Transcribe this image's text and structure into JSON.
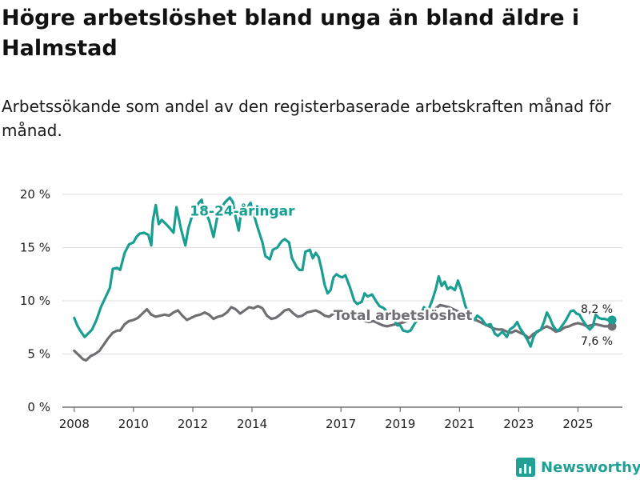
{
  "title": "Högre arbetslöshet bland unga än bland äldre i Halmstad",
  "subtitle": "Arbetssökande som andel av den registerbaserade arbetskraften månad för månad.",
  "brand": {
    "name": "Newsworthy",
    "color": "#21a195",
    "icon": "bar-chart-icon"
  },
  "chart_data": {
    "type": "line",
    "title": "Högre arbetslöshet bland unga än bland äldre i Halmstad",
    "xlabel": "",
    "ylabel": "",
    "xlim": [
      2007.6,
      2026.5
    ],
    "ylim": [
      0,
      20
    ],
    "yticks": [
      0,
      5,
      10,
      15,
      20
    ],
    "ytick_labels": [
      "0 %",
      "5 %",
      "10 %",
      "15 %",
      "20 %"
    ],
    "xticks": [
      2008,
      2010,
      2012,
      2014,
      2017,
      2019,
      2021,
      2023,
      2025
    ],
    "xtick_labels": [
      "2008",
      "2010",
      "2012",
      "2014",
      "2017",
      "2019",
      "2021",
      "2023",
      "2025"
    ],
    "grid": true,
    "series": [
      {
        "name": "18-24-åringar",
        "label": "18-24-åringar",
        "color": "#1a9e91",
        "end_label": "8,2 %",
        "end_value": 8.2,
        "points": [
          [
            2008.0,
            8.4
          ],
          [
            2008.1,
            7.7
          ],
          [
            2008.2,
            7.2
          ],
          [
            2008.35,
            6.6
          ],
          [
            2008.5,
            7.0
          ],
          [
            2008.6,
            7.3
          ],
          [
            2008.75,
            8.2
          ],
          [
            2008.9,
            9.4
          ],
          [
            2009.05,
            10.3
          ],
          [
            2009.2,
            11.2
          ],
          [
            2009.3,
            13.0
          ],
          [
            2009.45,
            13.1
          ],
          [
            2009.55,
            12.9
          ],
          [
            2009.7,
            14.5
          ],
          [
            2009.85,
            15.3
          ],
          [
            2010.0,
            15.5
          ],
          [
            2010.1,
            16.0
          ],
          [
            2010.2,
            16.3
          ],
          [
            2010.35,
            16.4
          ],
          [
            2010.5,
            16.2
          ],
          [
            2010.6,
            15.2
          ],
          [
            2010.65,
            17.5
          ],
          [
            2010.75,
            19.0
          ],
          [
            2010.85,
            17.2
          ],
          [
            2010.95,
            17.6
          ],
          [
            2011.1,
            17.2
          ],
          [
            2011.2,
            16.9
          ],
          [
            2011.35,
            16.4
          ],
          [
            2011.45,
            18.8
          ],
          [
            2011.6,
            16.8
          ],
          [
            2011.75,
            15.2
          ],
          [
            2011.85,
            16.8
          ],
          [
            2012.0,
            18.2
          ],
          [
            2012.1,
            18.7
          ],
          [
            2012.2,
            19.2
          ],
          [
            2012.3,
            19.5
          ],
          [
            2012.35,
            18.8
          ],
          [
            2012.55,
            17.6
          ],
          [
            2012.7,
            16.0
          ],
          [
            2012.85,
            18.2
          ],
          [
            2013.0,
            18.9
          ],
          [
            2013.1,
            19.3
          ],
          [
            2013.25,
            19.7
          ],
          [
            2013.35,
            19.3
          ],
          [
            2013.45,
            17.8
          ],
          [
            2013.55,
            16.6
          ],
          [
            2013.65,
            18.8
          ],
          [
            2013.8,
            18.6
          ],
          [
            2013.95,
            19.2
          ],
          [
            2014.05,
            18.2
          ],
          [
            2014.2,
            16.8
          ],
          [
            2014.35,
            15.5
          ],
          [
            2014.45,
            14.2
          ],
          [
            2014.6,
            13.9
          ],
          [
            2014.7,
            14.8
          ],
          [
            2014.85,
            15.0
          ],
          [
            2015.0,
            15.6
          ],
          [
            2015.1,
            15.8
          ],
          [
            2015.25,
            15.5
          ],
          [
            2015.35,
            14.0
          ],
          [
            2015.5,
            13.2
          ],
          [
            2015.6,
            12.9
          ],
          [
            2015.7,
            12.9
          ],
          [
            2015.8,
            14.6
          ],
          [
            2015.95,
            14.8
          ],
          [
            2016.05,
            14.0
          ],
          [
            2016.15,
            14.5
          ],
          [
            2016.25,
            14.1
          ],
          [
            2016.35,
            12.9
          ],
          [
            2016.45,
            11.5
          ],
          [
            2016.55,
            10.7
          ],
          [
            2016.65,
            11.0
          ],
          [
            2016.75,
            12.2
          ],
          [
            2016.85,
            12.5
          ],
          [
            2016.95,
            12.3
          ],
          [
            2017.05,
            12.2
          ],
          [
            2017.15,
            12.4
          ],
          [
            2017.3,
            11.3
          ],
          [
            2017.45,
            10.0
          ],
          [
            2017.55,
            9.7
          ],
          [
            2017.7,
            9.9
          ],
          [
            2017.8,
            10.7
          ],
          [
            2017.9,
            10.4
          ],
          [
            2018.05,
            10.6
          ],
          [
            2018.2,
            9.9
          ],
          [
            2018.3,
            9.5
          ],
          [
            2018.45,
            9.3
          ],
          [
            2018.6,
            8.8
          ],
          [
            2018.75,
            8.4
          ],
          [
            2018.9,
            7.7
          ],
          [
            2019.0,
            7.7
          ],
          [
            2019.1,
            7.2
          ],
          [
            2019.25,
            7.1
          ],
          [
            2019.35,
            7.2
          ],
          [
            2019.5,
            7.9
          ],
          [
            2019.65,
            8.4
          ],
          [
            2019.8,
            9.4
          ],
          [
            2019.95,
            9.1
          ],
          [
            2020.1,
            10.2
          ],
          [
            2020.2,
            11.1
          ],
          [
            2020.3,
            12.3
          ],
          [
            2020.4,
            11.4
          ],
          [
            2020.5,
            11.8
          ],
          [
            2020.6,
            11.1
          ],
          [
            2020.7,
            11.3
          ],
          [
            2020.85,
            11.0
          ],
          [
            2020.95,
            11.9
          ],
          [
            2021.05,
            11.1
          ],
          [
            2021.2,
            9.5
          ],
          [
            2021.35,
            8.6
          ],
          [
            2021.5,
            8.2
          ],
          [
            2021.6,
            8.6
          ],
          [
            2021.75,
            8.3
          ],
          [
            2021.9,
            7.7
          ],
          [
            2022.05,
            7.8
          ],
          [
            2022.2,
            6.9
          ],
          [
            2022.3,
            6.7
          ],
          [
            2022.45,
            7.1
          ],
          [
            2022.6,
            6.6
          ],
          [
            2022.7,
            7.3
          ],
          [
            2022.85,
            7.6
          ],
          [
            2022.95,
            8.0
          ],
          [
            2023.05,
            7.4
          ],
          [
            2023.15,
            7.0
          ],
          [
            2023.3,
            6.3
          ],
          [
            2023.4,
            5.7
          ],
          [
            2023.5,
            6.6
          ],
          [
            2023.6,
            7.1
          ],
          [
            2023.75,
            7.3
          ],
          [
            2023.85,
            8.0
          ],
          [
            2023.95,
            8.9
          ],
          [
            2024.05,
            8.4
          ],
          [
            2024.15,
            7.7
          ],
          [
            2024.25,
            7.3
          ],
          [
            2024.35,
            7.2
          ],
          [
            2024.45,
            7.6
          ],
          [
            2024.6,
            8.2
          ],
          [
            2024.75,
            9.0
          ],
          [
            2024.85,
            9.1
          ],
          [
            2024.95,
            8.8
          ],
          [
            2025.05,
            8.7
          ],
          [
            2025.15,
            8.2
          ],
          [
            2025.3,
            7.6
          ],
          [
            2025.4,
            7.3
          ],
          [
            2025.5,
            7.6
          ],
          [
            2025.6,
            8.7
          ],
          [
            2025.7,
            8.4
          ],
          [
            2025.8,
            8.3
          ],
          [
            2025.9,
            8.3
          ],
          [
            2026.0,
            8.2
          ],
          [
            2026.15,
            8.2
          ]
        ]
      },
      {
        "name": "Total arbetslöshet",
        "label": "Total arbetslöshet",
        "color": "#6e6e73",
        "end_label": "7,6 %",
        "end_value": 7.6,
        "points": [
          [
            2008.0,
            5.3
          ],
          [
            2008.15,
            4.9
          ],
          [
            2008.3,
            4.5
          ],
          [
            2008.4,
            4.4
          ],
          [
            2008.55,
            4.8
          ],
          [
            2008.7,
            5.0
          ],
          [
            2008.85,
            5.3
          ],
          [
            2009.0,
            5.9
          ],
          [
            2009.15,
            6.5
          ],
          [
            2009.3,
            7.0
          ],
          [
            2009.45,
            7.2
          ],
          [
            2009.55,
            7.2
          ],
          [
            2009.7,
            7.8
          ],
          [
            2009.85,
            8.1
          ],
          [
            2010.0,
            8.2
          ],
          [
            2010.15,
            8.4
          ],
          [
            2010.3,
            8.8
          ],
          [
            2010.45,
            9.2
          ],
          [
            2010.6,
            8.7
          ],
          [
            2010.75,
            8.5
          ],
          [
            2010.9,
            8.6
          ],
          [
            2011.05,
            8.7
          ],
          [
            2011.2,
            8.6
          ],
          [
            2011.35,
            8.9
          ],
          [
            2011.5,
            9.1
          ],
          [
            2011.65,
            8.6
          ],
          [
            2011.8,
            8.2
          ],
          [
            2011.95,
            8.4
          ],
          [
            2012.1,
            8.6
          ],
          [
            2012.25,
            8.7
          ],
          [
            2012.4,
            8.9
          ],
          [
            2012.55,
            8.7
          ],
          [
            2012.7,
            8.3
          ],
          [
            2012.85,
            8.5
          ],
          [
            2013.0,
            8.6
          ],
          [
            2013.15,
            8.9
          ],
          [
            2013.3,
            9.4
          ],
          [
            2013.45,
            9.2
          ],
          [
            2013.6,
            8.8
          ],
          [
            2013.75,
            9.1
          ],
          [
            2013.9,
            9.4
          ],
          [
            2014.05,
            9.3
          ],
          [
            2014.2,
            9.5
          ],
          [
            2014.35,
            9.3
          ],
          [
            2014.5,
            8.6
          ],
          [
            2014.65,
            8.3
          ],
          [
            2014.8,
            8.4
          ],
          [
            2014.95,
            8.7
          ],
          [
            2015.1,
            9.1
          ],
          [
            2015.25,
            9.2
          ],
          [
            2015.4,
            8.8
          ],
          [
            2015.55,
            8.5
          ],
          [
            2015.7,
            8.6
          ],
          [
            2015.85,
            8.9
          ],
          [
            2016.0,
            9.0
          ],
          [
            2016.15,
            9.1
          ],
          [
            2016.3,
            8.9
          ],
          [
            2016.45,
            8.6
          ],
          [
            2016.6,
            8.5
          ],
          [
            2016.75,
            8.8
          ],
          [
            2016.9,
            8.9
          ],
          [
            2017.05,
            9.1
          ],
          [
            2017.2,
            8.9
          ],
          [
            2017.35,
            8.6
          ],
          [
            2017.5,
            8.4
          ],
          [
            2017.65,
            8.3
          ],
          [
            2017.8,
            8.1
          ],
          [
            2017.95,
            8.0
          ],
          [
            2018.1,
            8.1
          ],
          [
            2018.25,
            7.9
          ],
          [
            2018.4,
            7.7
          ],
          [
            2018.55,
            7.6
          ],
          [
            2018.7,
            7.7
          ],
          [
            2018.85,
            7.8
          ],
          [
            2019.0,
            7.9
          ],
          [
            2019.15,
            8.0
          ],
          [
            2019.3,
            8.2
          ],
          [
            2019.45,
            8.4
          ],
          [
            2019.6,
            8.6
          ],
          [
            2019.75,
            8.8
          ],
          [
            2019.9,
            9.0
          ],
          [
            2020.05,
            9.1
          ],
          [
            2020.2,
            9.3
          ],
          [
            2020.35,
            9.6
          ],
          [
            2020.5,
            9.5
          ],
          [
            2020.65,
            9.4
          ],
          [
            2020.8,
            9.2
          ],
          [
            2020.95,
            9.0
          ],
          [
            2021.1,
            8.8
          ],
          [
            2021.25,
            8.5
          ],
          [
            2021.4,
            8.3
          ],
          [
            2021.55,
            8.2
          ],
          [
            2021.7,
            8.0
          ],
          [
            2021.85,
            7.8
          ],
          [
            2022.0,
            7.6
          ],
          [
            2022.15,
            7.4
          ],
          [
            2022.3,
            7.3
          ],
          [
            2022.45,
            7.3
          ],
          [
            2022.6,
            7.1
          ],
          [
            2022.75,
            7.0
          ],
          [
            2022.9,
            7.2
          ],
          [
            2023.05,
            7.0
          ],
          [
            2023.2,
            6.8
          ],
          [
            2023.35,
            6.5
          ],
          [
            2023.5,
            6.9
          ],
          [
            2023.65,
            7.1
          ],
          [
            2023.8,
            7.4
          ],
          [
            2023.95,
            7.6
          ],
          [
            2024.1,
            7.4
          ],
          [
            2024.25,
            7.1
          ],
          [
            2024.4,
            7.2
          ],
          [
            2024.55,
            7.5
          ],
          [
            2024.7,
            7.6
          ],
          [
            2024.85,
            7.8
          ],
          [
            2025.0,
            7.9
          ],
          [
            2025.15,
            7.8
          ],
          [
            2025.3,
            7.6
          ],
          [
            2025.45,
            7.7
          ],
          [
            2025.6,
            7.8
          ],
          [
            2025.75,
            7.7
          ],
          [
            2025.9,
            7.6
          ],
          [
            2026.05,
            7.6
          ],
          [
            2026.15,
            7.6
          ]
        ]
      }
    ]
  }
}
